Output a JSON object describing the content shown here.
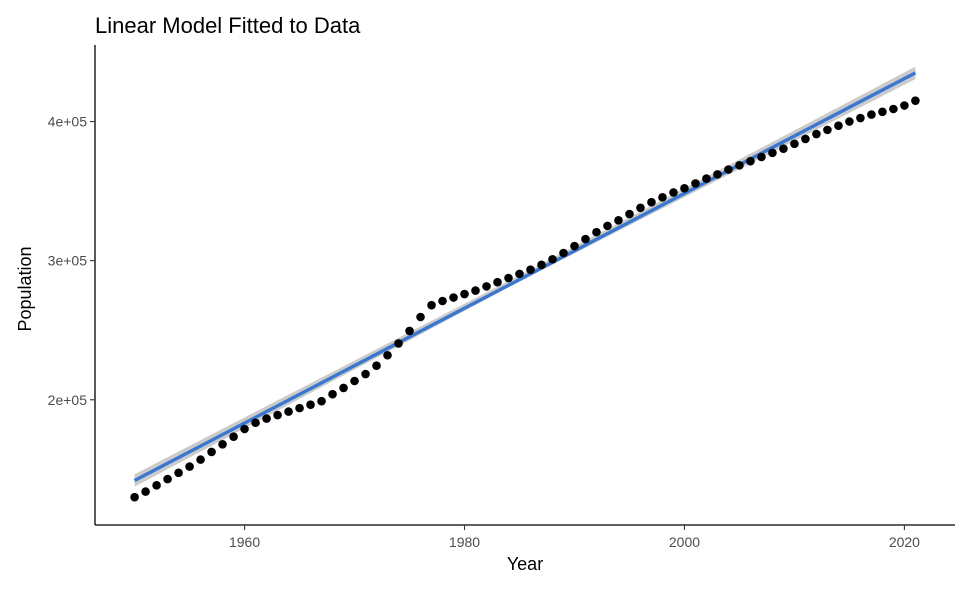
{
  "chart_data": {
    "type": "scatter",
    "title": "Linear Model Fitted to Data",
    "xlabel": "Year",
    "ylabel": "Population",
    "xlim": [
      1946.4,
      2024.6
    ],
    "ylim": [
      110000,
      455000
    ],
    "x_ticks": [
      {
        "value": 1960,
        "label": "1960"
      },
      {
        "value": 1980,
        "label": "1980"
      },
      {
        "value": 2000,
        "label": "2000"
      },
      {
        "value": 2020,
        "label": "2020"
      }
    ],
    "y_ticks": [
      {
        "value": 200000,
        "label": "2e+05"
      },
      {
        "value": 300000,
        "label": "3e+05"
      },
      {
        "value": 400000,
        "label": "4e+05"
      }
    ],
    "grid": false,
    "colors": {
      "points": "#000000",
      "fit_line": "#3a77d0",
      "confidence_band": "#b9b9b9",
      "axis": "#000000",
      "tick_label": "#4d4d4d"
    },
    "series": [
      {
        "type": "scatter",
        "x": [
          1950,
          1951,
          1952,
          1953,
          1954,
          1955,
          1956,
          1957,
          1958,
          1959,
          1960,
          1961,
          1962,
          1963,
          1964,
          1965,
          1966,
          1967,
          1968,
          1969,
          1970,
          1971,
          1972,
          1973,
          1974,
          1975,
          1976,
          1977,
          1978,
          1979,
          1980,
          1981,
          1982,
          1983,
          1984,
          1985,
          1986,
          1987,
          1988,
          1989,
          1990,
          1991,
          1992,
          1993,
          1994,
          1995,
          1996,
          1997,
          1998,
          1999,
          2000,
          2001,
          2002,
          2003,
          2004,
          2005,
          2006,
          2007,
          2008,
          2009,
          2010,
          2011,
          2012,
          2013,
          2014,
          2015,
          2016,
          2017,
          2018,
          2019,
          2020,
          2021
        ],
        "y": [
          130000,
          134000,
          138500,
          143000,
          147500,
          152000,
          157000,
          162500,
          168000,
          173500,
          179000,
          183500,
          186500,
          189000,
          191500,
          194000,
          196500,
          199000,
          204000,
          208500,
          213500,
          218500,
          224500,
          232000,
          240500,
          249500,
          259500,
          268000,
          271000,
          273500,
          276000,
          278500,
          281500,
          284500,
          287500,
          290500,
          293500,
          297000,
          301000,
          305500,
          310500,
          315500,
          320500,
          325000,
          329000,
          333500,
          338000,
          342000,
          345500,
          349000,
          352000,
          355500,
          359000,
          362000,
          365500,
          368500,
          371500,
          374500,
          377500,
          380500,
          384000,
          387500,
          391000,
          394000,
          397000,
          400000,
          402500,
          405000,
          407000,
          409000,
          411500,
          415000
        ]
      },
      {
        "type": "line",
        "method": "lm",
        "x": [
          1950,
          2021
        ],
        "y": [
          142000,
          435000
        ],
        "confidence_band": {
          "x": [
            1950,
            1985.5,
            2021
          ],
          "lower": [
            137500,
            287000,
            430500
          ],
          "upper": [
            146500,
            291500,
            439500
          ]
        }
      }
    ]
  }
}
